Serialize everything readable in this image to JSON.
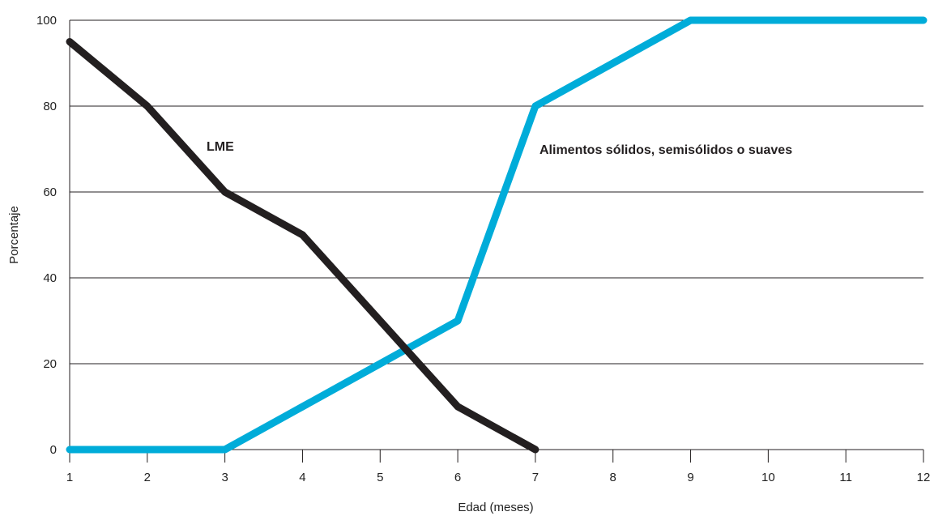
{
  "chart_data": {
    "type": "line",
    "title": "",
    "xlabel": "Edad (meses)",
    "ylabel": "Porcentaje",
    "x": [
      1,
      2,
      3,
      4,
      5,
      6,
      7,
      8,
      9,
      10,
      11,
      12
    ],
    "xlim": [
      1,
      12
    ],
    "ylim": [
      0,
      100
    ],
    "yticks": [
      0,
      20,
      40,
      60,
      80,
      100
    ],
    "grid": "horizontal",
    "legend": "none",
    "series": [
      {
        "name": "LME",
        "color": "#231f20",
        "points": [
          [
            1,
            95
          ],
          [
            2,
            80
          ],
          [
            3,
            60
          ],
          [
            4,
            50
          ],
          [
            5,
            30
          ],
          [
            6,
            10
          ],
          [
            7,
            0
          ]
        ]
      },
      {
        "name": "Alimentos sólidos, semisólidos o suaves",
        "color": "#00acd9",
        "points": [
          [
            1,
            0
          ],
          [
            2,
            0
          ],
          [
            3,
            0
          ],
          [
            4,
            10
          ],
          [
            5,
            20
          ],
          [
            6,
            30
          ],
          [
            7,
            80
          ],
          [
            8,
            90
          ],
          [
            9,
            100
          ],
          [
            10,
            100
          ],
          [
            11,
            100
          ],
          [
            12,
            100
          ]
        ]
      }
    ]
  }
}
